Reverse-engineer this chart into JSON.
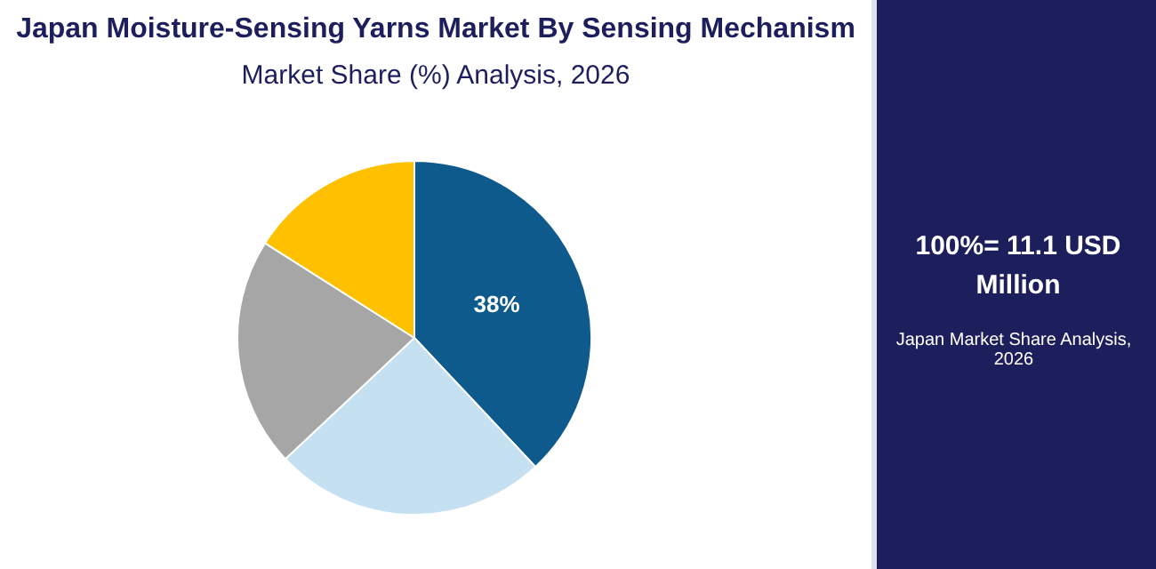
{
  "chart_data": {
    "type": "pie",
    "title": "Japan Moisture-Sensing Yarns Market By Sensing Mechanism",
    "subtitle": "Market Share (%) Analysis, 2026",
    "categories": [
      null,
      null,
      null,
      null
    ],
    "values": [
      38,
      25,
      21,
      16
    ],
    "colors": [
      "#0f5a8c",
      "#c5e0f0",
      "#a6a6a6",
      "#ffc000"
    ],
    "value_labels": [
      "38%",
      null,
      null,
      null
    ],
    "legend": false,
    "annotations": [
      "100%= 11.1 USD Million",
      "Japan Market Share Analysis, 2026"
    ]
  }
}
